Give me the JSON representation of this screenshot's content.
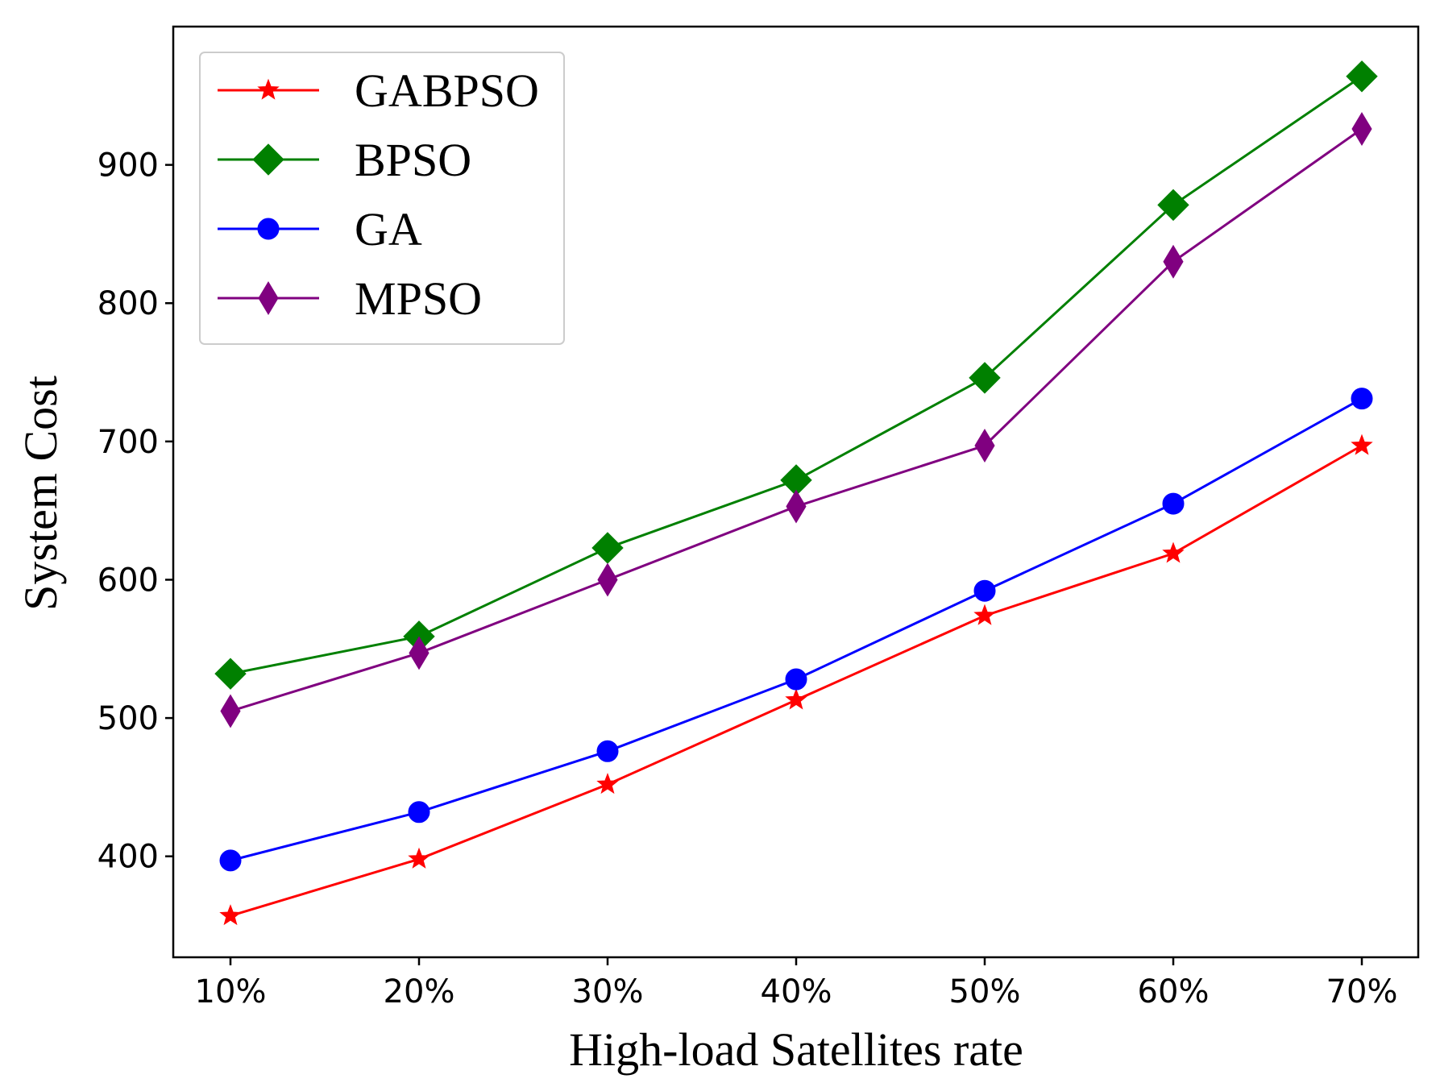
{
  "chart_data": {
    "type": "line",
    "xlabel": "High-load Satellites rate",
    "ylabel": "System Cost",
    "categories": [
      "10%",
      "20%",
      "30%",
      "40%",
      "50%",
      "60%",
      "70%"
    ],
    "ylim": [
      327,
      1000
    ],
    "yticks": [
      400,
      500,
      600,
      700,
      800,
      900
    ],
    "grid": false,
    "legend_position": "top-left",
    "series": [
      {
        "name": "GABPSO",
        "color": "#ff0000",
        "marker": "star",
        "values": [
          357,
          398,
          452,
          513,
          574,
          619,
          697
        ]
      },
      {
        "name": "BPSO",
        "color": "#008000",
        "marker": "diamond",
        "values": [
          532,
          559,
          623,
          672,
          746,
          871,
          964
        ]
      },
      {
        "name": "GA",
        "color": "#0000ff",
        "marker": "circle",
        "values": [
          397,
          432,
          476,
          528,
          592,
          655,
          731
        ]
      },
      {
        "name": "MPSO",
        "color": "#800080",
        "marker": "thin-diamond",
        "values": [
          505,
          547,
          600,
          653,
          697,
          830,
          926
        ]
      }
    ]
  }
}
